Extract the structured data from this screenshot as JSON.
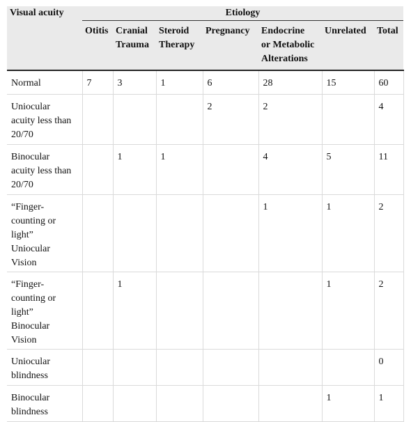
{
  "table": {
    "corner_label": "Visual acuity",
    "group_label": "Etiology",
    "columns": [
      [
        "Otitis"
      ],
      [
        "Cranial",
        "Trauma"
      ],
      [
        "Steroid",
        "Therapy"
      ],
      [
        "Pregnancy"
      ],
      [
        "Endocrine",
        "or Metabolic",
        "Alterations"
      ],
      [
        "Unrelated"
      ],
      [
        "Total"
      ]
    ],
    "rows": [
      {
        "label": [
          "Normal"
        ],
        "cells": [
          "7",
          "3",
          "1",
          "6",
          "28",
          "15",
          "60"
        ]
      },
      {
        "label": [
          "Uniocular",
          "acuity less than",
          "20/70"
        ],
        "cells": [
          "",
          "",
          "",
          "2",
          "2",
          "",
          "4"
        ]
      },
      {
        "label": [
          "Binocular",
          "acuity less than",
          "20/70"
        ],
        "cells": [
          "",
          "1",
          "1",
          "",
          "4",
          "5",
          "11"
        ]
      },
      {
        "label": [
          "“Finger-",
          "counting or",
          "light”",
          "Uniocular",
          "Vision"
        ],
        "cells": [
          "",
          "",
          "",
          "",
          "1",
          "1",
          "2"
        ]
      },
      {
        "label": [
          "“Finger-",
          "counting or",
          "light”",
          "Binocular",
          "Vision"
        ],
        "cells": [
          "",
          "1",
          "",
          "",
          "",
          "1",
          "2"
        ]
      },
      {
        "label": [
          "Uniocular",
          "blindness"
        ],
        "cells": [
          "",
          "",
          "",
          "",
          "",
          "",
          "0"
        ]
      },
      {
        "label": [
          "Binocular",
          "blindness"
        ],
        "cells": [
          "",
          "",
          "",
          "",
          "",
          "1",
          "1"
        ]
      }
    ]
  }
}
